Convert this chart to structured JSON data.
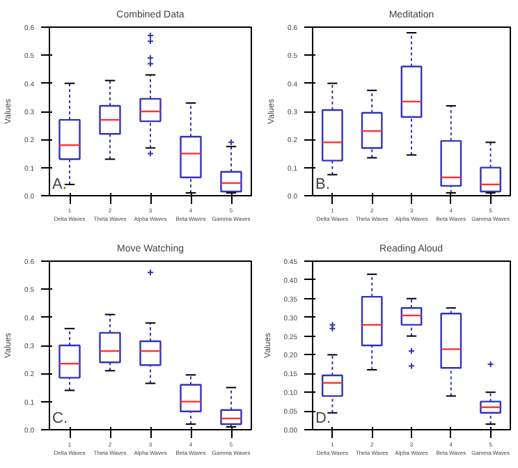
{
  "chart_data": [
    {
      "type": "box",
      "title": "Combined Data",
      "ylabel": "Values",
      "annotations": [
        "A."
      ],
      "categories": [
        "1\nDelta Waves",
        "2\nTheta Waves",
        "3\nAlpha Waves",
        "4\nBeta Waves",
        "5\nGamma Waves"
      ],
      "ylim": [
        0,
        0.6
      ],
      "yticks": [
        {
          "value": 0,
          "label": "0.0"
        },
        0.1,
        0.2,
        0.3,
        0.4,
        0.5,
        0.6
      ],
      "grid": false,
      "series": [
        {
          "color": "#3333bb",
          "boxes": [
            {
              "low": 0.04,
              "q1": 0.13,
              "median": 0.18,
              "q3": 0.27,
              "high": 0.4
            },
            {
              "low": 0.13,
              "q1": 0.22,
              "median": 0.27,
              "q3": 0.32,
              "high": 0.41
            },
            {
              "low": 0.17,
              "q1": 0.265,
              "median": 0.3,
              "q3": 0.345,
              "high": 0.43,
              "outliers": [
                0.15,
                0.47,
                0.49,
                0.55,
                0.57
              ]
            },
            {
              "low": 0.01,
              "q1": 0.065,
              "median": 0.15,
              "q3": 0.21,
              "high": 0.33
            },
            {
              "low": 0.01,
              "q1": 0.015,
              "median": 0.045,
              "q3": 0.085,
              "high": 0.175,
              "outliers": [
                0.19
              ]
            }
          ]
        }
      ]
    },
    {
      "type": "box",
      "title": "Meditation",
      "ylabel": "Values",
      "annotations": [
        "B."
      ],
      "categories": [
        "1\nDelta Waves",
        "2\nTheta Waves",
        "3\nAlpha Waves",
        "4\nBeta Waves",
        "5\nGamma Waves"
      ],
      "ylim": [
        0,
        0.6
      ],
      "yticks": [
        {
          "value": 0,
          "label": "0.0"
        },
        0.1,
        0.2,
        0.3,
        0.4,
        0.5,
        0.6
      ],
      "grid": false,
      "series": [
        {
          "color": "#3333bb",
          "boxes": [
            {
              "low": 0.075,
              "q1": 0.125,
              "median": 0.19,
              "q3": 0.305,
              "high": 0.4
            },
            {
              "low": 0.135,
              "q1": 0.17,
              "median": 0.23,
              "q3": 0.295,
              "high": 0.375
            },
            {
              "low": 0.145,
              "q1": 0.28,
              "median": 0.335,
              "q3": 0.46,
              "high": 0.58
            },
            {
              "low": 0.01,
              "q1": 0.035,
              "median": 0.065,
              "q3": 0.195,
              "high": 0.32
            },
            {
              "low": 0.01,
              "q1": 0.015,
              "median": 0.04,
              "q3": 0.1,
              "high": 0.19
            }
          ]
        }
      ]
    },
    {
      "type": "box",
      "title": "Move Watching",
      "ylabel": "Values",
      "annotations": [
        "C."
      ],
      "categories": [
        "1\nDelta Waves",
        "2\nTheta Waves",
        "3\nAlpha Waves",
        "4\nBeta Waves",
        "5\nGamma Waves"
      ],
      "ylim": [
        0,
        0.6
      ],
      "yticks": [
        {
          "value": 0,
          "label": "0.0"
        },
        0.1,
        0.2,
        0.3,
        0.4,
        0.5,
        0.6
      ],
      "grid": false,
      "series": [
        {
          "color": "#3333bb",
          "boxes": [
            {
              "low": 0.14,
              "q1": 0.185,
              "median": 0.235,
              "q3": 0.3,
              "high": 0.36
            },
            {
              "low": 0.21,
              "q1": 0.24,
              "median": 0.28,
              "q3": 0.345,
              "high": 0.41
            },
            {
              "low": 0.165,
              "q1": 0.23,
              "median": 0.28,
              "q3": 0.315,
              "high": 0.38,
              "outliers": [
                0.56
              ]
            },
            {
              "low": 0.02,
              "q1": 0.065,
              "median": 0.1,
              "q3": 0.16,
              "high": 0.195
            },
            {
              "low": 0.01,
              "q1": 0.02,
              "median": 0.04,
              "q3": 0.07,
              "high": 0.15
            }
          ]
        }
      ]
    },
    {
      "type": "box",
      "title": "Reading Aloud",
      "ylabel": "Values",
      "annotations": [
        "D."
      ],
      "categories": [
        "1\nDelta Waves",
        "2\nTheta Waves",
        "3\nAlpha Waves",
        "4\nBeta Waves",
        "5\nGamma Waves"
      ],
      "ylim": [
        0,
        0.45
      ],
      "yticks": [
        {
          "value": 0,
          "label": "0.00"
        },
        0.05,
        {
          "value": 0.1,
          "label": "0.10"
        },
        0.15,
        {
          "value": 0.2,
          "label": "0.20"
        },
        0.25,
        {
          "value": 0.3,
          "label": "0.30"
        },
        0.35,
        {
          "value": 0.4,
          "label": "0.40"
        },
        0.45
      ],
      "grid": false,
      "series": [
        {
          "color": "#3333bb",
          "boxes": [
            {
              "low": 0.045,
              "q1": 0.09,
              "median": 0.125,
              "q3": 0.145,
              "high": 0.2,
              "outliers": [
                0.27,
                0.28
              ]
            },
            {
              "low": 0.16,
              "q1": 0.225,
              "median": 0.28,
              "q3": 0.355,
              "high": 0.415
            },
            {
              "low": 0.25,
              "q1": 0.28,
              "median": 0.305,
              "q3": 0.325,
              "high": 0.35,
              "outliers": [
                0.17,
                0.21
              ]
            },
            {
              "low": 0.09,
              "q1": 0.165,
              "median": 0.215,
              "q3": 0.31,
              "high": 0.325
            },
            {
              "low": 0.015,
              "q1": 0.045,
              "median": 0.06,
              "q3": 0.075,
              "high": 0.1,
              "outliers": [
                0.175
              ]
            }
          ]
        }
      ]
    }
  ]
}
